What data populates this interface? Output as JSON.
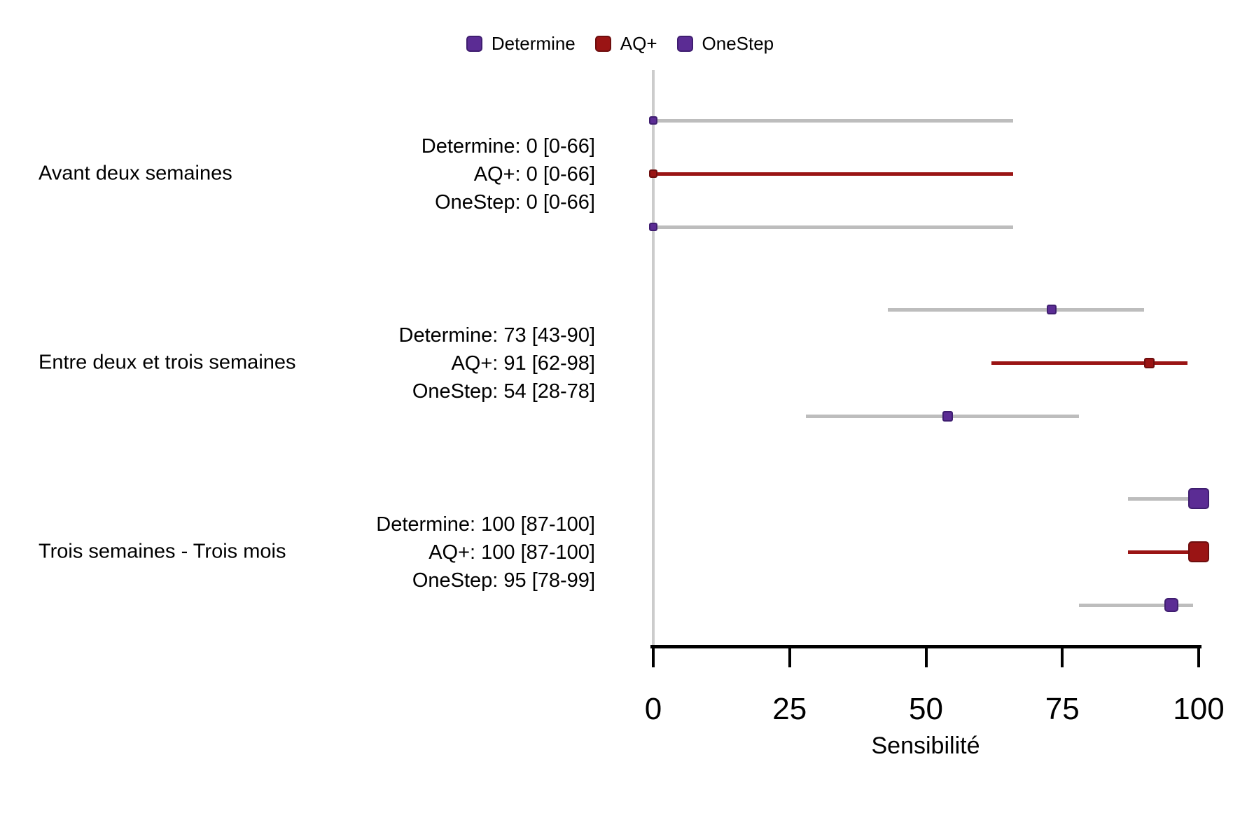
{
  "legend": [
    {
      "label": "Determine",
      "color": "#5B2C94",
      "border": "#3F1E70"
    },
    {
      "label": "AQ+",
      "color": "#9A1414",
      "border": "#6E0E0E"
    },
    {
      "label": "OneStep",
      "color": "#5B2C94",
      "border": "#3F1E70"
    }
  ],
  "chart_data": {
    "type": "scatter",
    "subtype": "forest-plot",
    "xlabel": "Sensibilité",
    "x_ticks": [
      "0",
      "25",
      "50",
      "75",
      "100"
    ],
    "x_tick_values": [
      0,
      25,
      50,
      75,
      100
    ],
    "xlim": [
      0,
      100
    ],
    "grid": false,
    "legend_position": "top-center",
    "colors": {
      "purple": "#5B2C94",
      "dark_red": "#9A1414",
      "gray_ci": "#BDBDBD",
      "axis_gray": "#CCCCCC",
      "axis_black": "#000000"
    },
    "groups": [
      {
        "label": "Avant deux semaines",
        "rows": [
          {
            "name": "Determine",
            "annotation": "Determine: 0 [0-66]",
            "value": 0,
            "ci": [
              0,
              66
            ],
            "marker_color": "#5B2C94",
            "marker_border": "#3F1E70",
            "ci_color": "#BDBDBD",
            "marker_size": 12
          },
          {
            "name": "AQ+",
            "annotation": "AQ+: 0 [0-66]",
            "value": 0,
            "ci": [
              0,
              66
            ],
            "marker_color": "#9A1414",
            "marker_border": "#6E0E0E",
            "ci_color": "#9A1414",
            "marker_size": 12
          },
          {
            "name": "OneStep",
            "annotation": "OneStep: 0 [0-66]",
            "value": 0,
            "ci": [
              0,
              66
            ],
            "marker_color": "#5B2C94",
            "marker_border": "#3F1E70",
            "ci_color": "#BDBDBD",
            "marker_size": 12
          }
        ]
      },
      {
        "label": "Entre deux et trois semaines",
        "rows": [
          {
            "name": "Determine",
            "annotation": "Determine: 73 [43-90]",
            "value": 73,
            "ci": [
              43,
              90
            ],
            "marker_color": "#5B2C94",
            "marker_border": "#3F1E70",
            "ci_color": "#BDBDBD",
            "marker_size": 14
          },
          {
            "name": "AQ+",
            "annotation": "AQ+: 91 [62-98]",
            "value": 91,
            "ci": [
              62,
              98
            ],
            "marker_color": "#9A1414",
            "marker_border": "#6E0E0E",
            "ci_color": "#9A1414",
            "marker_size": 15
          },
          {
            "name": "OneStep",
            "annotation": "OneStep: 54 [28-78]",
            "value": 54,
            "ci": [
              28,
              78
            ],
            "marker_color": "#5B2C94",
            "marker_border": "#3F1E70",
            "ci_color": "#BDBDBD",
            "marker_size": 15
          }
        ]
      },
      {
        "label": "Trois semaines - Trois mois",
        "rows": [
          {
            "name": "Determine",
            "annotation": "Determine: 100 [87-100]",
            "value": 100,
            "ci": [
              87,
              100
            ],
            "marker_color": "#5B2C94",
            "marker_border": "#3F1E70",
            "ci_color": "#BDBDBD",
            "marker_size": 30
          },
          {
            "name": "AQ+",
            "annotation": "AQ+: 100 [87-100]",
            "value": 100,
            "ci": [
              87,
              100
            ],
            "marker_color": "#9A1414",
            "marker_border": "#6E0E0E",
            "ci_color": "#9A1414",
            "marker_size": 30
          },
          {
            "name": "OneStep",
            "annotation": "OneStep: 95 [78-99]",
            "value": 95,
            "ci": [
              78,
              99
            ],
            "marker_color": "#5B2C94",
            "marker_border": "#3F1E70",
            "ci_color": "#BDBDBD",
            "marker_size": 20
          }
        ]
      }
    ]
  }
}
